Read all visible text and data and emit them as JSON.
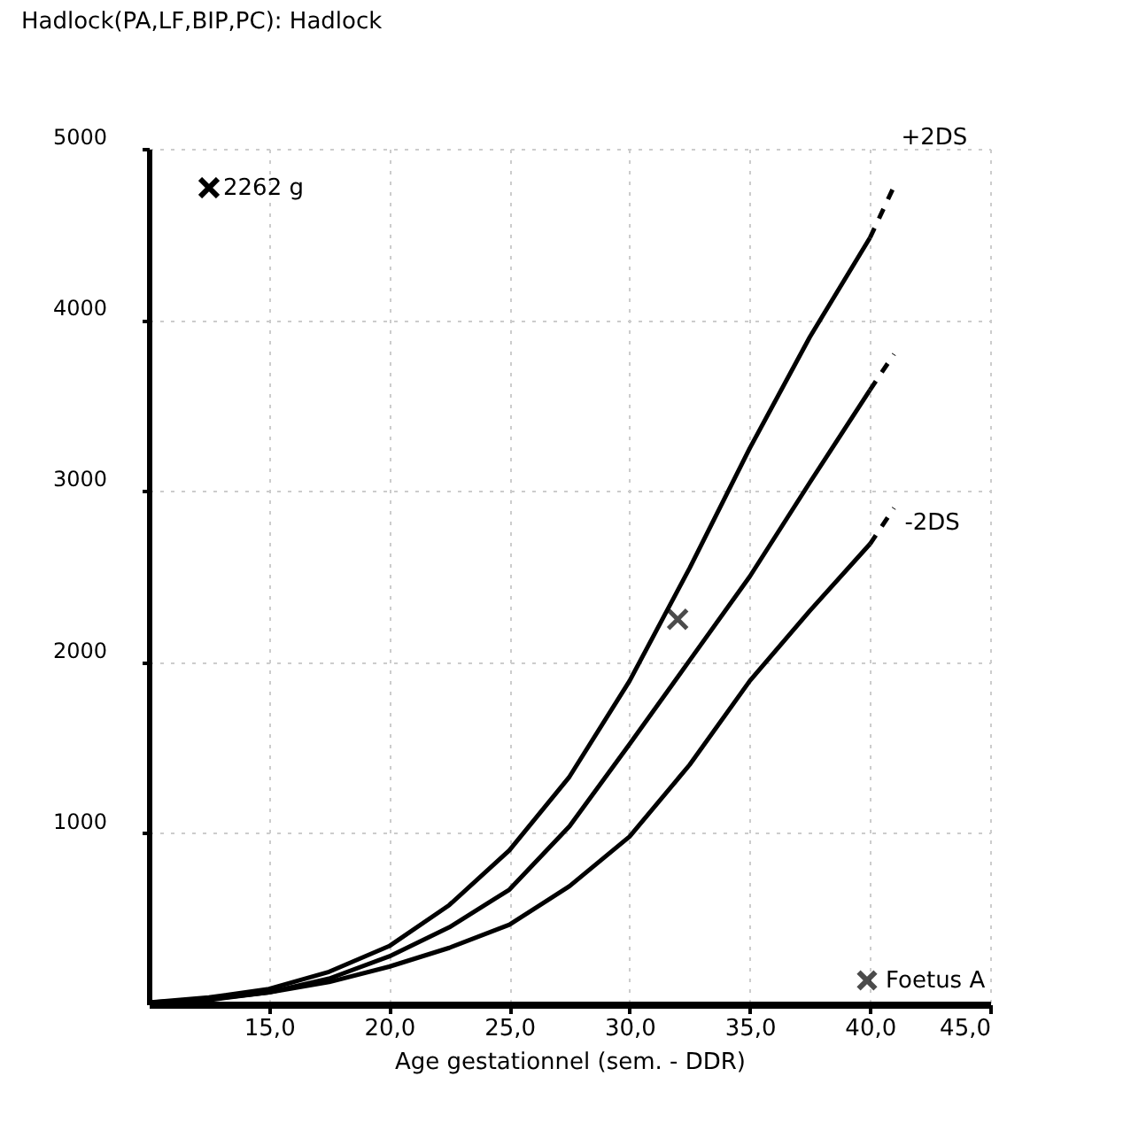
{
  "chart_data": {
    "type": "line",
    "title": "Hadlock(PA,LF,BIP,PC):  Hadlock",
    "xlabel": "Age gestationnel (sem. - DDR)",
    "xlim": [
      10,
      45
    ],
    "xticks": [
      {
        "value": 15,
        "label": "15,0"
      },
      {
        "value": 20,
        "label": "20,0"
      },
      {
        "value": 25,
        "label": "25,0"
      },
      {
        "value": 30,
        "label": "30,0"
      },
      {
        "value": 35,
        "label": "35,0"
      },
      {
        "value": 40,
        "label": "40,0"
      },
      {
        "value": 45,
        "label": "45,0"
      }
    ],
    "ylim": [
      0,
      5000
    ],
    "yticks": [
      1000,
      2000,
      3000,
      4000,
      5000
    ],
    "grid": true,
    "legend": "bottom right",
    "annotations": [
      "2262 g"
    ],
    "series": [
      {
        "color": "#000000",
        "line_style": "solid",
        "x": [
          10,
          12.5,
          15,
          17.5,
          20,
          22.5,
          25,
          27.5,
          30,
          32.5,
          35,
          37.5,
          40
        ],
        "values": [
          10,
          40,
          90,
          190,
          340,
          580,
          900,
          1330,
          1890,
          2550,
          3250,
          3900,
          4480
        ]
      },
      {
        "color": "#000000",
        "line_style": "solid",
        "x": [
          10,
          12.5,
          15,
          17.5,
          20,
          22.5,
          25,
          27.5,
          30,
          32.5,
          35,
          37.5,
          40
        ],
        "values": [
          10,
          30,
          70,
          150,
          280,
          450,
          670,
          1040,
          1520,
          2010,
          2500,
          3050,
          3590
        ]
      },
      {
        "color": "#000000",
        "line_style": "solid",
        "x": [
          10,
          12.5,
          15,
          17.5,
          20,
          22.5,
          25,
          27.5,
          30,
          32.5,
          35,
          37.5,
          40
        ],
        "values": [
          10,
          25,
          70,
          130,
          220,
          330,
          465,
          690,
          980,
          1400,
          1890,
          2300,
          2690
        ]
      },
      {
        "name": "+2DS",
        "color": "#000000",
        "line_style": "dashed",
        "x": [
          40,
          41
        ],
        "values": [
          4480,
          4780
        ]
      },
      {
        "color": "#000000",
        "line_style": "dashed",
        "x": [
          40,
          41
        ],
        "values": [
          3590,
          3800
        ]
      },
      {
        "name": "-2DS",
        "color": "#000000",
        "line_style": "dashed",
        "x": [
          40,
          41
        ],
        "values": [
          2690,
          2900
        ]
      },
      {
        "name": "Foetus A",
        "type": "scatter",
        "marker": "cross",
        "color": "#000000",
        "x": [
          32
        ],
        "values": [
          2250
        ]
      }
    ]
  }
}
